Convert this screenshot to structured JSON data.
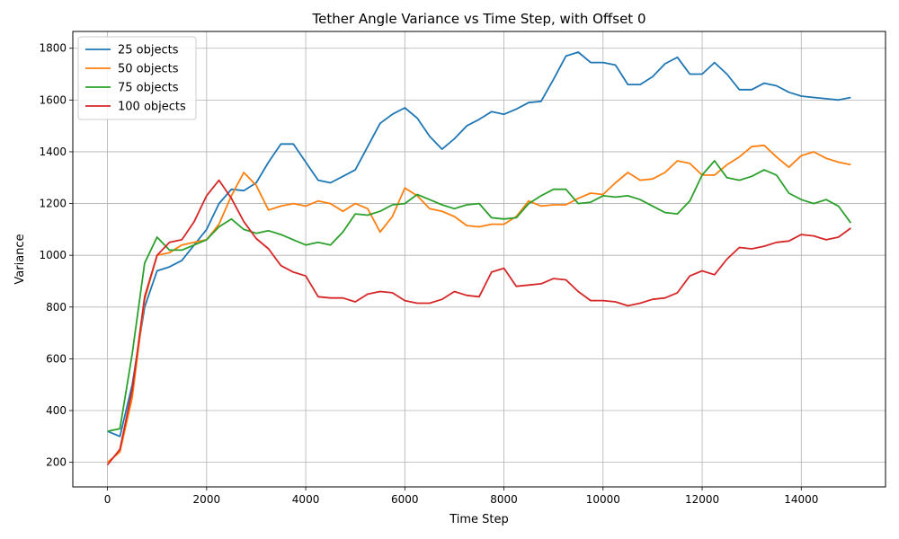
{
  "chart_data": {
    "type": "line",
    "title": "Tether Angle Variance vs Time Step, with Offset 0",
    "xlabel": "Time Step",
    "ylabel": "Variance",
    "xlim": [
      -700,
      15700
    ],
    "ylim": [
      105,
      1865
    ],
    "xticks": [
      0,
      2000,
      4000,
      6000,
      8000,
      10000,
      12000,
      14000
    ],
    "xtick_labels": [
      "0",
      "2000",
      "4000",
      "6000",
      "8000",
      "10000",
      "12000",
      "14000"
    ],
    "yticks": [
      200,
      400,
      600,
      800,
      1000,
      1200,
      1400,
      1600,
      1800
    ],
    "ytick_labels": [
      "200",
      "400",
      "600",
      "800",
      "1000",
      "1200",
      "1400",
      "1600",
      "1800"
    ],
    "grid": true,
    "legend_position": "top-left",
    "x": [
      0,
      250,
      500,
      750,
      1000,
      1250,
      1500,
      1750,
      2000,
      2250,
      2500,
      2750,
      3000,
      3250,
      3500,
      3750,
      4000,
      4250,
      4500,
      4750,
      5000,
      5250,
      5500,
      5750,
      6000,
      6250,
      6500,
      6750,
      7000,
      7250,
      7500,
      7750,
      8000,
      8250,
      8500,
      8750,
      9000,
      9250,
      9500,
      9750,
      10000,
      10250,
      10500,
      10750,
      11000,
      11250,
      11500,
      11750,
      12000,
      12250,
      12500,
      12750,
      13000,
      13250,
      13500,
      13750,
      14000,
      14250,
      14500,
      14750,
      15000
    ],
    "series": [
      {
        "name": "25 objects",
        "color": "#1f77b4",
        "values": [
          320,
          300,
          500,
          800,
          940,
          955,
          980,
          1040,
          1100,
          1200,
          1255,
          1250,
          1280,
          1360,
          1430,
          1430,
          1360,
          1290,
          1280,
          1305,
          1330,
          1420,
          1510,
          1545,
          1570,
          1530,
          1460,
          1410,
          1450,
          1500,
          1525,
          1555,
          1545,
          1565,
          1590,
          1595,
          1680,
          1770,
          1785,
          1745,
          1745,
          1735,
          1660,
          1660,
          1690,
          1740,
          1765,
          1700,
          1700,
          1745,
          1700,
          1640,
          1640,
          1665,
          1655,
          1630,
          1615,
          1610,
          1605,
          1600,
          1610
        ]
      },
      {
        "name": "50 objects",
        "color": "#ff7f0e",
        "values": [
          200,
          240,
          450,
          830,
          1000,
          1010,
          1040,
          1050,
          1060,
          1120,
          1230,
          1320,
          1270,
          1175,
          1190,
          1200,
          1190,
          1210,
          1200,
          1170,
          1200,
          1180,
          1090,
          1150,
          1260,
          1230,
          1180,
          1170,
          1150,
          1115,
          1110,
          1120,
          1120,
          1150,
          1210,
          1190,
          1195,
          1195,
          1220,
          1240,
          1235,
          1280,
          1320,
          1290,
          1295,
          1320,
          1365,
          1355,
          1310,
          1310,
          1350,
          1380,
          1420,
          1425,
          1380,
          1340,
          1385,
          1400,
          1375,
          1360,
          1350
        ]
      },
      {
        "name": "75 objects",
        "color": "#2ca02c",
        "values": [
          320,
          330,
          620,
          970,
          1070,
          1020,
          1020,
          1040,
          1060,
          1110,
          1140,
          1100,
          1085,
          1095,
          1080,
          1060,
          1040,
          1050,
          1040,
          1090,
          1160,
          1155,
          1170,
          1195,
          1200,
          1235,
          1215,
          1195,
          1180,
          1195,
          1200,
          1145,
          1140,
          1145,
          1200,
          1230,
          1255,
          1255,
          1200,
          1205,
          1230,
          1225,
          1230,
          1215,
          1190,
          1165,
          1160,
          1210,
          1310,
          1365,
          1300,
          1290,
          1305,
          1330,
          1310,
          1240,
          1215,
          1200,
          1215,
          1190,
          1125
        ]
      },
      {
        "name": "100 objects",
        "color": "#d62728",
        "values": [
          190,
          250,
          480,
          840,
          1000,
          1050,
          1060,
          1130,
          1230,
          1290,
          1220,
          1130,
          1065,
          1025,
          960,
          935,
          920,
          840,
          835,
          835,
          820,
          850,
          860,
          855,
          825,
          815,
          815,
          830,
          860,
          845,
          840,
          935,
          950,
          880,
          885,
          890,
          910,
          905,
          860,
          825,
          825,
          820,
          805,
          815,
          830,
          835,
          855,
          920,
          940,
          925,
          985,
          1030,
          1025,
          1035,
          1050,
          1055,
          1080,
          1075,
          1060,
          1070,
          1105
        ]
      }
    ]
  }
}
